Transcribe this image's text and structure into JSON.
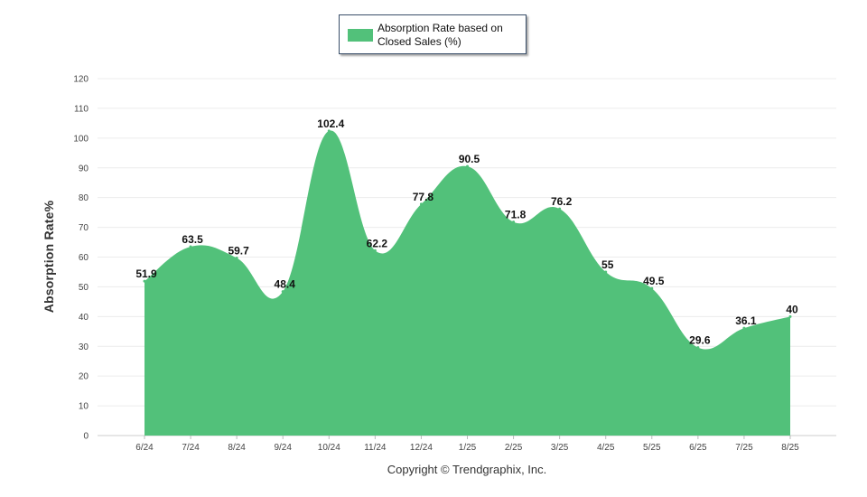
{
  "chart_data": {
    "type": "area",
    "categories": [
      "6/24",
      "7/24",
      "8/24",
      "9/24",
      "10/24",
      "11/24",
      "12/24",
      "1/25",
      "2/25",
      "3/25",
      "4/25",
      "5/25",
      "6/25",
      "7/25",
      "8/25"
    ],
    "series": [
      {
        "name": "Absorption Rate based on Closed Sales (%)",
        "values": [
          51.9,
          63.5,
          59.7,
          48.4,
          102.4,
          62.2,
          77.8,
          90.5,
          71.8,
          76.2,
          55,
          49.5,
          29.6,
          36.1,
          40
        ],
        "color": "#52c17a"
      }
    ],
    "data_labels": [
      "51.9",
      "63.5",
      "59.7",
      "48.4",
      "102.4",
      "62.2",
      "77.8",
      "90.5",
      "71.8",
      "76.2",
      "55",
      "49.5",
      "29.6",
      "36.1",
      "40"
    ],
    "ylabel": "Absorption Rate%",
    "xlabel": "",
    "ylim": [
      0,
      120
    ],
    "yticks": [
      0,
      10,
      20,
      30,
      40,
      50,
      60,
      70,
      80,
      90,
      100,
      110,
      120
    ],
    "grid": true,
    "legend_position": "top-center"
  },
  "legend": {
    "label": "Absorption Rate based on Closed Sales (%)"
  },
  "footer": {
    "copyright": "Copyright © Trendgraphix, Inc."
  }
}
